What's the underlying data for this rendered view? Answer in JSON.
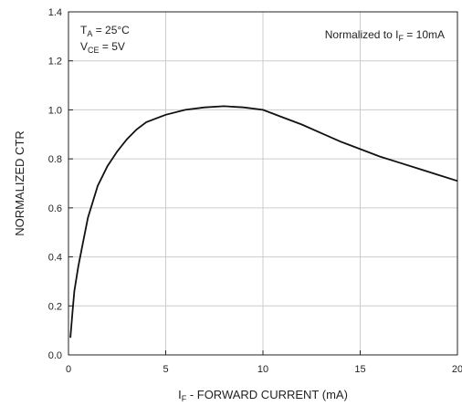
{
  "chart_data": {
    "type": "line",
    "xlabel": {
      "prefix": "I",
      "sub": "F",
      "text": " - FORWARD CURRENT (mA)"
    },
    "ylabel": "NORMALIZED CTR",
    "xlim": [
      0,
      20
    ],
    "ylim": [
      0.0,
      1.4
    ],
    "x_ticks": [
      "0",
      "5",
      "10",
      "15",
      "20"
    ],
    "y_ticks": [
      "0.0",
      "0.2",
      "0.4",
      "0.6",
      "0.8",
      "1.0",
      "1.2",
      "1.4"
    ],
    "grid": true,
    "annotations": {
      "ta": {
        "prefix": "T",
        "sub": "A",
        "text": " = 25°C"
      },
      "vce": {
        "prefix": "V",
        "sub": "CE",
        "text": " = 5V"
      },
      "normalized": {
        "prefix": "Normalized to I",
        "sub": "F",
        "text": " = 10mA"
      }
    },
    "series": [
      {
        "x": [
          0.1,
          0.2,
          0.3,
          0.5,
          0.7,
          1.0,
          1.5,
          2.0,
          2.5,
          3.0,
          3.5,
          4.0,
          4.5,
          5.0,
          6.0,
          7.0,
          8.0,
          9.0,
          10.0,
          11.0,
          12.0,
          13.0,
          14.0,
          15.0,
          16.0,
          17.0,
          18.0,
          19.0,
          20.0
        ],
        "y": [
          0.07,
          0.17,
          0.26,
          0.36,
          0.44,
          0.56,
          0.69,
          0.77,
          0.83,
          0.88,
          0.92,
          0.95,
          0.965,
          0.98,
          1.0,
          1.01,
          1.015,
          1.01,
          1.0,
          0.97,
          0.94,
          0.905,
          0.87,
          0.84,
          0.81,
          0.785,
          0.76,
          0.735,
          0.71
        ]
      }
    ]
  }
}
